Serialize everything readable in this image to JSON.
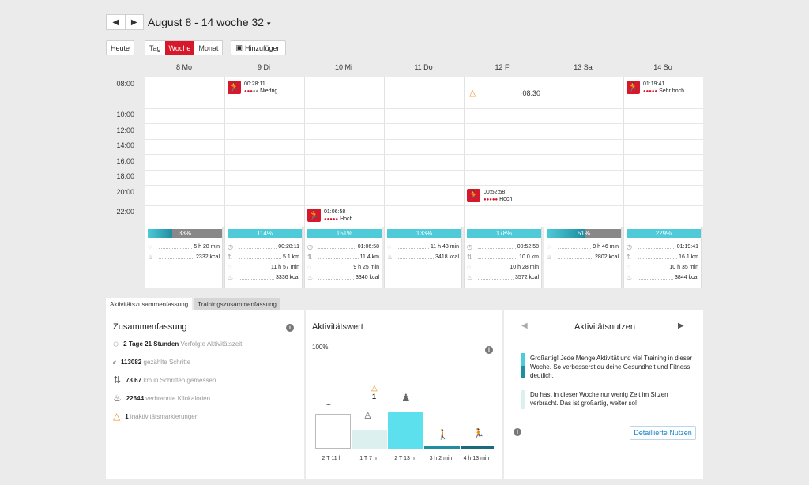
{
  "header": {
    "prev_icon": "◀",
    "next_icon": "▶",
    "title": "August 8 - 14 woche 32",
    "title_caret": "▾",
    "today_label": "Heute",
    "views": [
      "Tag",
      "Woche",
      "Monat"
    ],
    "active_view": "Woche",
    "add_label": "Hinzufügen"
  },
  "days": [
    "8 Mo",
    "9 Di",
    "10 Mi",
    "11 Do",
    "12 Fr",
    "13 Sa",
    "14 So"
  ],
  "times": [
    "08:00",
    "10:00",
    "12:00",
    "14:00",
    "16:00",
    "18:00",
    "20:00",
    "22:00"
  ],
  "events": {
    "di": {
      "duration": "00:28:11",
      "intensity": "Niedrig"
    },
    "mi": {
      "duration": "01:06:58",
      "intensity": "Hoch"
    },
    "fr_alert": {
      "time": "08:30"
    },
    "fr": {
      "duration": "00:52:58",
      "intensity": "Hoch"
    },
    "so": {
      "duration": "01:19:41",
      "intensity": "Sehr hoch"
    }
  },
  "summary_cols": [
    {
      "pct": "33%",
      "pct_value": 33,
      "r1": "5 h 28 min",
      "r2": "2332 kcal",
      "r3": "",
      "r4": ""
    },
    {
      "pct": "114%",
      "pct_value": 114,
      "r1": "00:28:11",
      "r2": "5.1 km",
      "r3": "11 h 57 min",
      "r4": "3336 kcal"
    },
    {
      "pct": "151%",
      "pct_value": 151,
      "r1": "01:06:58",
      "r2": "11.4 km",
      "r3": "9 h 25 min",
      "r4": "3340 kcal"
    },
    {
      "pct": "133%",
      "pct_value": 133,
      "r1": "11 h 48 min",
      "r2": "3418 kcal",
      "r3": "",
      "r4": ""
    },
    {
      "pct": "178%",
      "pct_value": 178,
      "r1": "00:52:58",
      "r2": "10.0 km",
      "r3": "10 h 28 min",
      "r4": "3572 kcal"
    },
    {
      "pct": "51%",
      "pct_value": 51,
      "r1": "9 h 46 min",
      "r2": "2802 kcal",
      "r3": "",
      "r4": ""
    },
    {
      "pct": "229%",
      "pct_value": 229,
      "r1": "01:19:41",
      "r2": "16.1 km",
      "r3": "10 h 35 min",
      "r4": "3844 kcal"
    }
  ],
  "tabs": [
    "Aktivitätszusammenfassung",
    "Trainingszusammenfassung"
  ],
  "zusammenfassung": {
    "title": "Zusammenfassung",
    "rows": [
      {
        "value": "2 Tage 21 Stunden",
        "label": "Verfolgte Aktivitätszeit"
      },
      {
        "value": "113082",
        "label": "gezählte Schritte"
      },
      {
        "value": "73.67",
        "label": "km in Schritten gemessen"
      },
      {
        "value": "22644",
        "label": "verbrannte Kilokalorien"
      },
      {
        "value": "1",
        "label": "inaktivitätsmarkierungen"
      }
    ]
  },
  "aktivitaetswert": {
    "title": "Aktivitätswert",
    "ylabel": "100%",
    "alert_count": "1",
    "bars": [
      "2 T 11 h",
      "1 T 7 h",
      "2 T 13 h",
      "3 h 2 min",
      "4 h 13 min"
    ]
  },
  "nutzen": {
    "title": "Aktivitätsnutzen",
    "msg1": "Großartig! Jede Menge Aktivität und viel Training in dieser Woche. So verbesserst du deine Gesundheit und Fitness deutlich.",
    "msg2": "Du hast in dieser Woche nur wenig Zeit im Sitzen verbracht. Das ist großartig, weiter so!",
    "button": "Detaillierte Nutzen"
  },
  "colors": {
    "brand_red": "#d7182a",
    "cyan": "#4ecad8",
    "teal": "#1f8ea0"
  }
}
